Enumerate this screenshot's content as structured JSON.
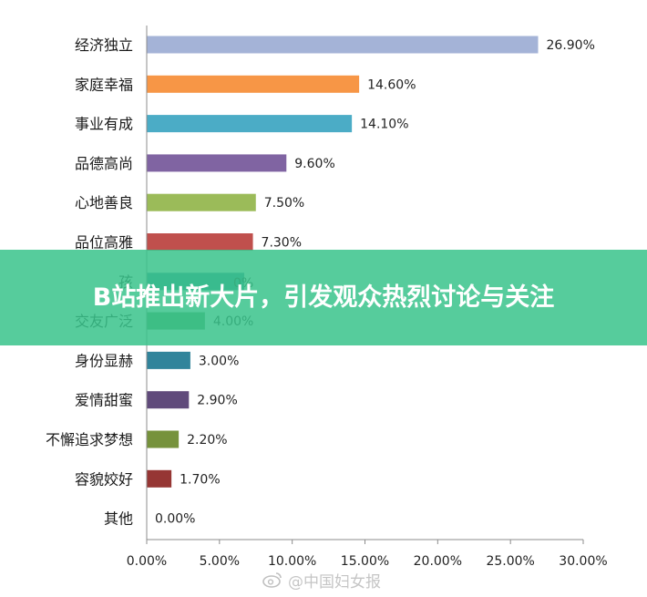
{
  "chart_data": {
    "type": "bar",
    "orientation": "horizontal",
    "categories": [
      "经济独立",
      "家庭幸福",
      "事业有成",
      "品德高尚",
      "心地善良",
      "品位高雅",
      "孩",
      "交友广泛",
      "身份显赫",
      "爱情甜蜜",
      "不懈追求梦想",
      "容貌姣好",
      "其他"
    ],
    "values": [
      26.9,
      14.6,
      14.1,
      9.6,
      7.5,
      7.3,
      6.7,
      4.0,
      3.0,
      2.9,
      2.2,
      1.7,
      0.0
    ],
    "data_labels": [
      "26.90%",
      "14.60%",
      "14.10%",
      "9.60%",
      "7.50%",
      "7.30%",
      "",
      "4.00%",
      "3.00%",
      "2.90%",
      "2.20%",
      "1.70%",
      "0.00%"
    ],
    "colors": [
      "#A4B3D7",
      "#F79646",
      "#4BACC6",
      "#8064A2",
      "#9BBB59",
      "#C0504D",
      "#31859C",
      "#4F9F5C",
      "#31849B",
      "#604A7B",
      "#76923C",
      "#963634",
      "#4F81BD"
    ],
    "xlim": [
      0,
      30
    ],
    "xticks": [
      "0.00%",
      "5.00%",
      "10.00%",
      "15.00%",
      "20.00%",
      "25.00%",
      "30.00%"
    ],
    "partial_label": "0%",
    "grid": false,
    "legend": "none"
  },
  "banner": {
    "title": "B站推出新大片，引发观众热烈讨论与关注"
  },
  "watermark": {
    "text": "@中国妇女报"
  }
}
